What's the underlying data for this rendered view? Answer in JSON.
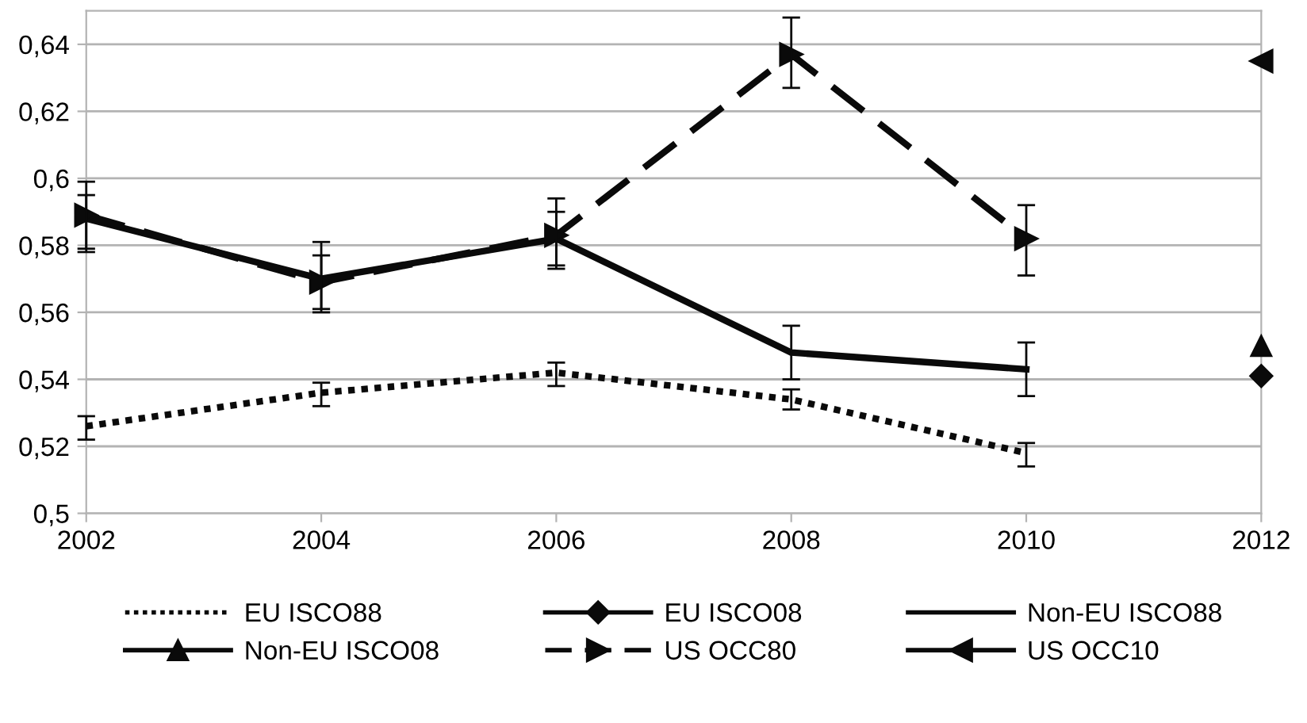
{
  "chart_data": {
    "type": "line",
    "x": [
      2002,
      2004,
      2006,
      2008,
      2010,
      2012
    ],
    "series": [
      {
        "name": "EU ISCO88",
        "color": "#0a0a0a",
        "line_style": "dotted",
        "marker": "none",
        "values": [
          0.526,
          0.536,
          0.542,
          0.534,
          0.518,
          null
        ],
        "errors": [
          [
            0.522,
            0.529
          ],
          [
            0.532,
            0.539
          ],
          [
            0.538,
            0.545
          ],
          [
            0.531,
            0.537
          ],
          [
            0.514,
            0.521
          ],
          null
        ]
      },
      {
        "name": "EU ISCO08",
        "color": "#0a0a0a",
        "line_style": "solid",
        "marker": "diamond",
        "values": [
          null,
          null,
          null,
          null,
          null,
          0.541
        ]
      },
      {
        "name": "Non-EU ISCO88",
        "color": "#0a0a0a",
        "line_style": "solid",
        "marker": "none",
        "values": [
          0.588,
          0.57,
          0.582,
          0.548,
          0.543,
          null
        ],
        "errors": [
          [
            0.578,
            0.595
          ],
          [
            0.561,
            0.577
          ],
          [
            0.574,
            0.59
          ],
          [
            0.54,
            0.556
          ],
          [
            0.535,
            0.551
          ],
          null
        ]
      },
      {
        "name": "Non-EU ISCO08",
        "color": "#0a0a0a",
        "line_style": "solid",
        "marker": "triangle",
        "values": [
          null,
          null,
          null,
          null,
          null,
          0.55
        ]
      },
      {
        "name": "US OCC80",
        "color": "#0a0a0a",
        "line_style": "dashed",
        "marker": "triangle_right",
        "values": [
          0.589,
          0.569,
          0.583,
          0.637,
          0.582,
          null
        ],
        "errors": [
          [
            0.579,
            0.599
          ],
          [
            0.56,
            0.581
          ],
          [
            0.573,
            0.594
          ],
          [
            0.627,
            0.648
          ],
          [
            0.571,
            0.592
          ],
          null
        ]
      },
      {
        "name": "US OCC10",
        "color": "#0a0a0a",
        "line_style": "solid",
        "marker": "triangle_left",
        "values": [
          null,
          null,
          null,
          null,
          null,
          0.635
        ]
      }
    ],
    "xlim": [
      2002,
      2012
    ],
    "xticks": [
      2002,
      2004,
      2006,
      2008,
      2010,
      2012
    ],
    "ylim": [
      0.5,
      0.65
    ],
    "yticks": [
      {
        "value": 0.5,
        "label": "0,5"
      },
      {
        "value": 0.52,
        "label": "0,52"
      },
      {
        "value": 0.54,
        "label": "0,54"
      },
      {
        "value": 0.56,
        "label": "0,56"
      },
      {
        "value": 0.58,
        "label": "0,58"
      },
      {
        "value": 0.6,
        "label": "0,6"
      },
      {
        "value": 0.62,
        "label": "0,62"
      },
      {
        "value": 0.64,
        "label": "0,64"
      }
    ],
    "grid": "y",
    "legend": "bottom"
  }
}
